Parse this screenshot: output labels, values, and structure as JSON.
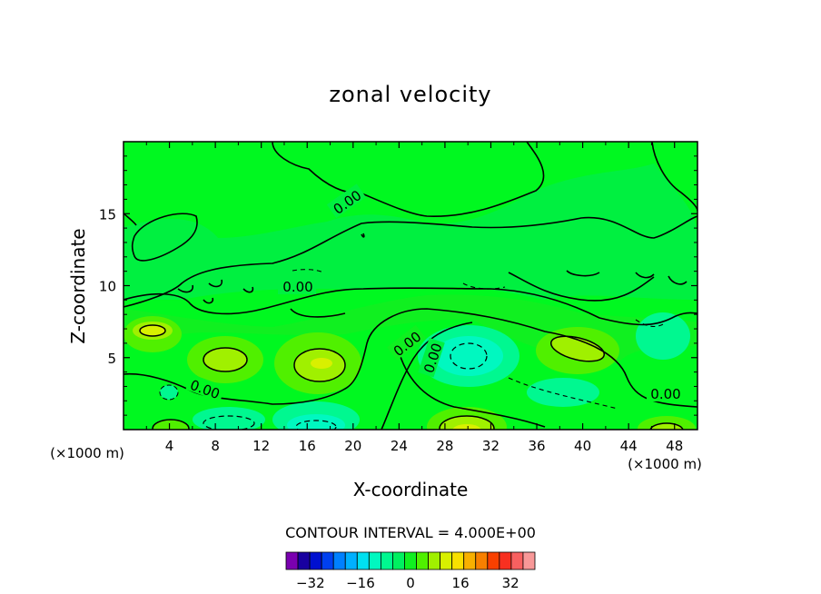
{
  "chart_data": {
    "type": "heatmap",
    "title": "zonal velocity",
    "xlabel": "X-coordinate",
    "ylabel": "Z-coordinate",
    "x_unit": "(×1000 m)",
    "z_unit": "(×1000 m)",
    "xlim": [
      0,
      50
    ],
    "ylim": [
      0,
      20
    ],
    "x_ticks": [
      "4",
      "8",
      "12",
      "16",
      "20",
      "24",
      "28",
      "32",
      "36",
      "40",
      "44",
      "48"
    ],
    "y_ticks": [
      "5",
      "10",
      "15"
    ],
    "contour_interval_text": "CONTOUR INTERVAL = 4.000E+00",
    "contour_labels": [
      "0.00",
      "0.00",
      "0.00",
      "0.00",
      "0.00",
      "0.00"
    ],
    "colorbar": {
      "levels": [
        -36,
        -32,
        -28,
        -24,
        -20,
        -16,
        -12,
        -8,
        -4,
        0,
        4,
        8,
        12,
        16,
        20,
        24,
        28,
        32,
        36
      ],
      "tick_labels": [
        "-32",
        "-16",
        "0",
        "16",
        "32"
      ],
      "colors": [
        "#7a00b0",
        "#1800a0",
        "#0010d0",
        "#0040f0",
        "#0080ff",
        "#00b0ff",
        "#00e0f0",
        "#00f8c0",
        "#00f890",
        "#00f060",
        "#10f020",
        "#50f000",
        "#a0f000",
        "#d8f000",
        "#f8e000",
        "#f8b000",
        "#f88000",
        "#f84000",
        "#f83020",
        "#f86060",
        "#f89898"
      ]
    }
  }
}
